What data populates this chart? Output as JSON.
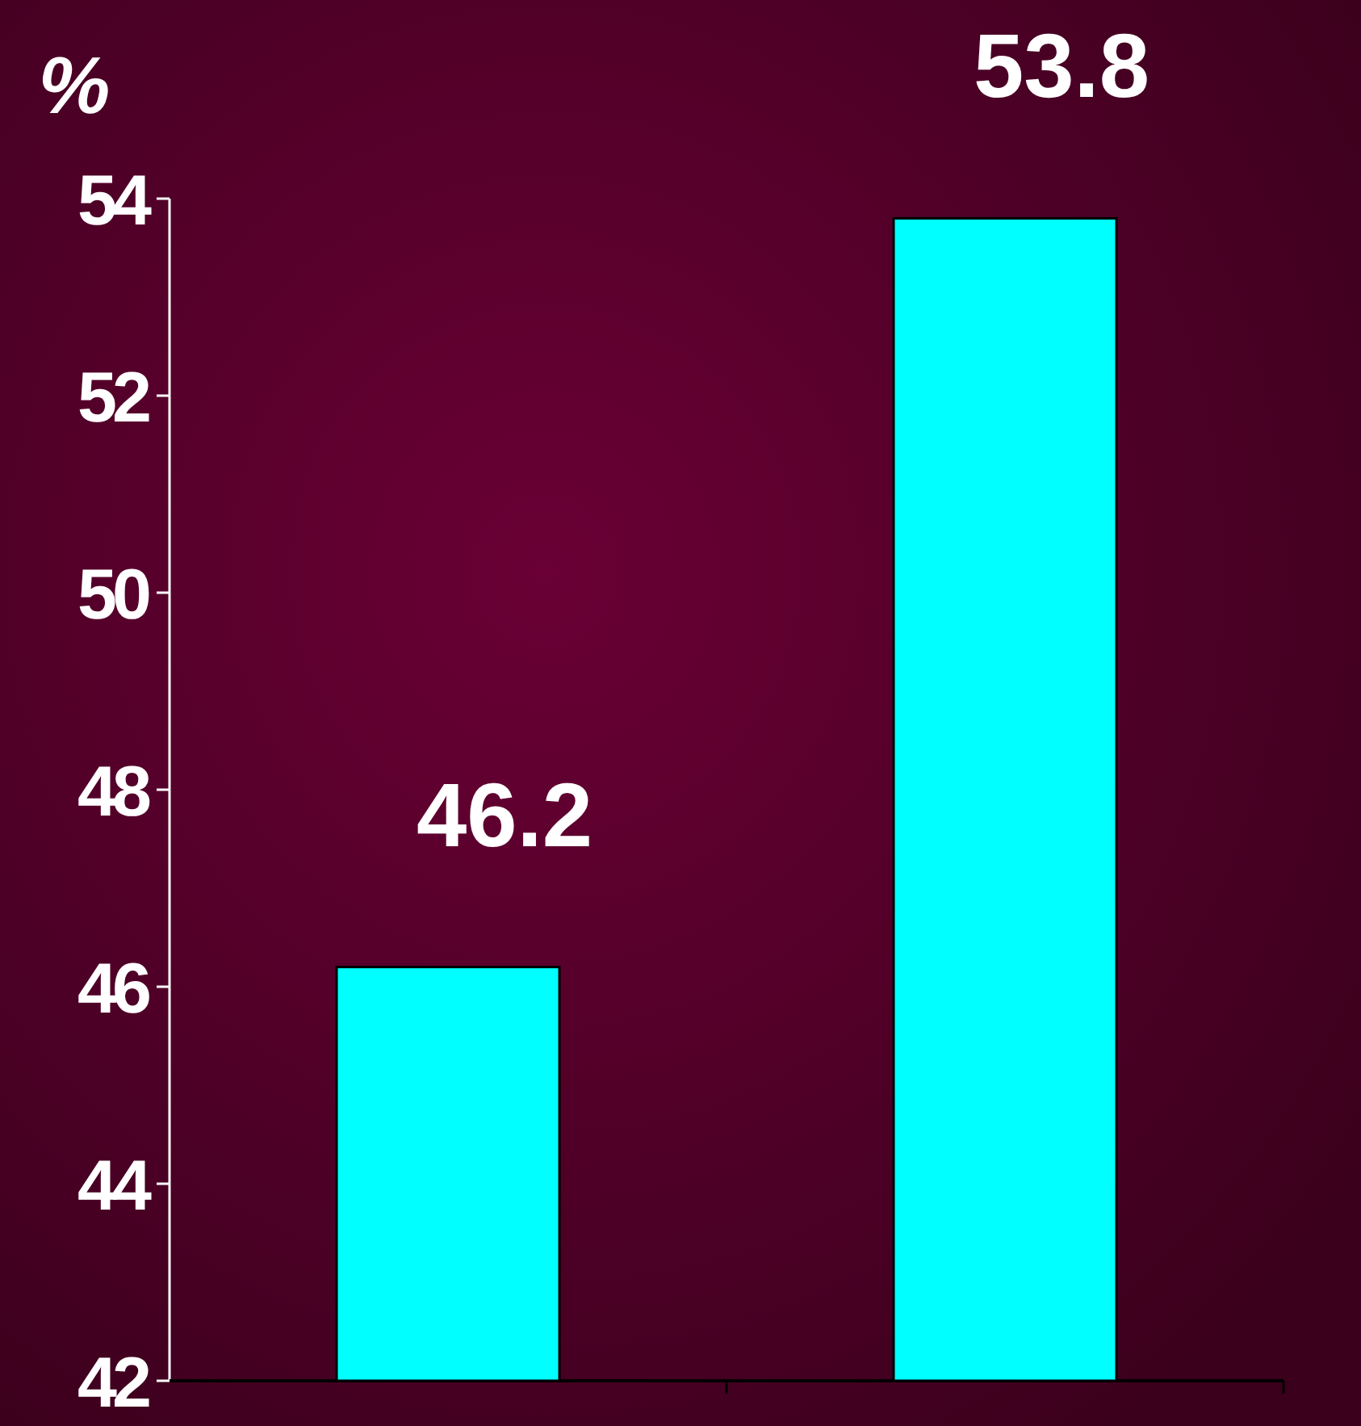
{
  "chart_data": {
    "type": "bar",
    "ylabel": "%",
    "categories": [
      null,
      null
    ],
    "values": [
      46.2,
      53.8
    ],
    "color": "#00ffff",
    "ylim": [
      42,
      54
    ],
    "yticks": [
      42,
      44,
      46,
      48,
      50,
      52,
      54
    ],
    "data_labels": true
  }
}
